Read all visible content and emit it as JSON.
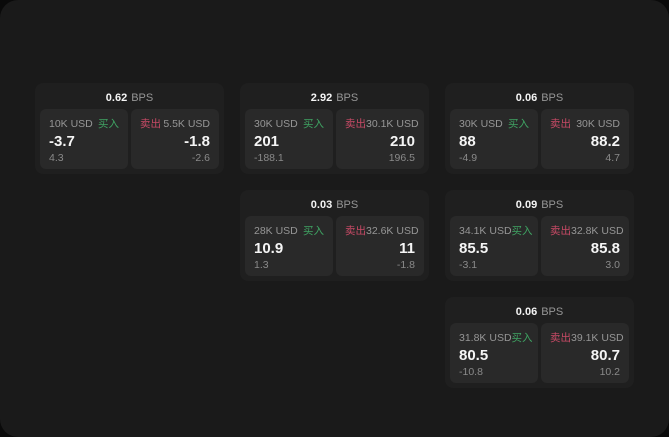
{
  "labels": {
    "bps": "BPS",
    "buy": "买入",
    "sell": "卖出"
  },
  "colors": {
    "bg_outer": "#0a0a0a",
    "bg_frame": "#1a1a1a",
    "card_bg": "#1f1f1f",
    "panel_bg": "#292929",
    "text_primary": "#f5f5f5",
    "text_muted": "#969696",
    "text_sub": "#8a8a8a",
    "buy_green": "#3fa463",
    "sell_red": "#c94a66"
  },
  "cards": [
    {
      "row": 1,
      "col": 1,
      "bps": "0.62",
      "buy": {
        "notional": "10K USD",
        "value": "-3.7",
        "sub": "4.3"
      },
      "sell": {
        "notional": "5.5K USD",
        "value": "-1.8",
        "sub": "-2.6"
      }
    },
    {
      "row": 1,
      "col": 2,
      "bps": "2.92",
      "buy": {
        "notional": "30K USD",
        "value": "201",
        "sub": "-188.1"
      },
      "sell": {
        "notional": "30.1K USD",
        "value": "210",
        "sub": "196.5"
      }
    },
    {
      "row": 1,
      "col": 3,
      "bps": "0.06",
      "buy": {
        "notional": "30K USD",
        "value": "88",
        "sub": "-4.9"
      },
      "sell": {
        "notional": "30K USD",
        "value": "88.2",
        "sub": "4.7"
      }
    },
    {
      "row": 2,
      "col": 2,
      "bps": "0.03",
      "buy": {
        "notional": "28K USD",
        "value": "10.9",
        "sub": "1.3"
      },
      "sell": {
        "notional": "32.6K USD",
        "value": "11",
        "sub": "-1.8"
      }
    },
    {
      "row": 2,
      "col": 3,
      "bps": "0.09",
      "buy": {
        "notional": "34.1K USD",
        "value": "85.5",
        "sub": "-3.1"
      },
      "sell": {
        "notional": "32.8K USD",
        "value": "85.8",
        "sub": "3.0"
      }
    },
    {
      "row": 3,
      "col": 3,
      "bps": "0.06",
      "buy": {
        "notional": "31.8K USD",
        "value": "80.5",
        "sub": "-10.8"
      },
      "sell": {
        "notional": "39.1K USD",
        "value": "80.7",
        "sub": "10.2"
      }
    }
  ]
}
